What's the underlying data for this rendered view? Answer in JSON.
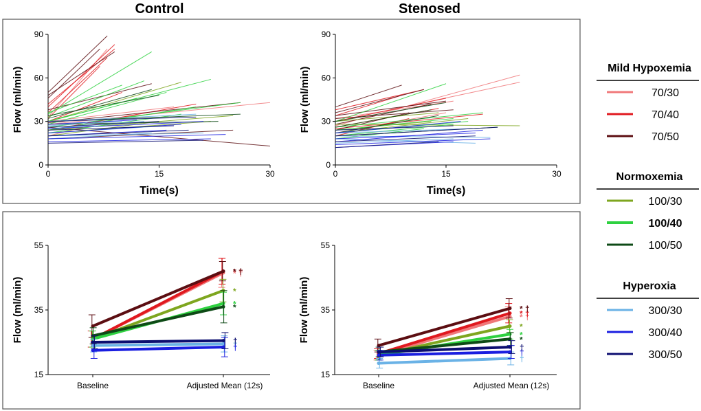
{
  "titles": {
    "left": "Control",
    "right": "Stenosed"
  },
  "legend": {
    "groups": [
      {
        "title": "Mild Hypoxemia",
        "items": [
          {
            "label": "70/30",
            "color": "#f0787a",
            "bold": false
          },
          {
            "label": "70/40",
            "color": "#e0191f",
            "bold": false
          },
          {
            "label": "70/50",
            "color": "#5c0e12",
            "bold": false
          }
        ]
      },
      {
        "title": "Normoxemia",
        "items": [
          {
            "label": "100/30",
            "color": "#7ea61f",
            "bold": false
          },
          {
            "label": "100/40",
            "color": "#2ed140",
            "bold": true
          },
          {
            "label": "100/50",
            "color": "#0e4a16",
            "bold": false
          }
        ]
      },
      {
        "title": "Hyperoxia",
        "items": [
          {
            "label": "300/30",
            "color": "#6ab2e6",
            "bold": false
          },
          {
            "label": "300/40",
            "color": "#1a1ee0",
            "bold": false
          },
          {
            "label": "300/50",
            "color": "#0c0e70",
            "bold": false
          }
        ]
      }
    ]
  },
  "chart_data": [
    {
      "id": "control-time",
      "type": "line",
      "title": "Control",
      "xlabel": "Time(s)",
      "ylabel": "Flow (ml/min)",
      "xlim": [
        0,
        30
      ],
      "ylim": [
        0,
        90
      ],
      "xticks": [
        0,
        15,
        30
      ],
      "yticks": [
        0,
        30,
        60,
        90
      ],
      "series": [
        {
          "name": "70/30",
          "color": "#f0787a",
          "segments": [
            [
              0,
              33,
              8,
              80
            ],
            [
              0,
              28,
              30,
              43
            ],
            [
              0,
              30,
              17,
              40
            ],
            [
              0,
              20,
              12,
              35
            ]
          ]
        },
        {
          "name": "70/40",
          "color": "#e0191f",
          "segments": [
            [
              0,
              40,
              9,
              83
            ],
            [
              0,
              36,
              8,
              74
            ],
            [
              0,
              42,
              9,
              80
            ],
            [
              0,
              32,
              7,
              68
            ],
            [
              0,
              30,
              10,
              50
            ],
            [
              0,
              24,
              20,
              42
            ]
          ]
        },
        {
          "name": "70/50",
          "color": "#5c0e12",
          "segments": [
            [
              0,
              50,
              8,
              89
            ],
            [
              0,
              46,
              7,
              80
            ],
            [
              0,
              48,
              9,
              78
            ],
            [
              0,
              38,
              14,
              56
            ],
            [
              0,
              26,
              30,
              13
            ],
            [
              0,
              18,
              25,
              24
            ],
            [
              0,
              29,
              26,
              43
            ]
          ]
        },
        {
          "name": "100/30",
          "color": "#7ea61f",
          "segments": [
            [
              0,
              30,
              18,
              57
            ],
            [
              0,
              24,
              25,
              34
            ],
            [
              0,
              22,
              22,
              30
            ],
            [
              0,
              20,
              15,
              30
            ]
          ]
        },
        {
          "name": "100/40",
          "color": "#2ed140",
          "segments": [
            [
              0,
              35,
              14,
              78
            ],
            [
              0,
              30,
              22,
              59
            ],
            [
              0,
              28,
              16,
              50
            ],
            [
              0,
              33,
              13,
              58
            ],
            [
              0,
              26,
              26,
              43
            ],
            [
              0,
              24,
              20,
              40
            ],
            [
              0,
              22,
              18,
              35
            ],
            [
              0,
              36,
              10,
              55
            ],
            [
              0,
              30,
              12,
              46
            ]
          ]
        },
        {
          "name": "100/50",
          "color": "#0e4a16",
          "segments": [
            [
              0,
              32,
              14,
              52
            ],
            [
              0,
              28,
              23,
              30
            ],
            [
              0,
              30,
              26,
              35
            ],
            [
              0,
              34,
              15,
              48
            ]
          ]
        },
        {
          "name": "300/30",
          "color": "#6ab2e6",
          "segments": [
            [
              0,
              25,
              13,
              30
            ],
            [
              0,
              20,
              21,
              22
            ],
            [
              0,
              27,
              10,
              30
            ],
            [
              0,
              18,
              14,
              22
            ],
            [
              0,
              30,
              20,
              35
            ],
            [
              0,
              22,
              16,
              27
            ]
          ]
        },
        {
          "name": "300/40",
          "color": "#1a1ee0",
          "segments": [
            [
              0,
              18,
              24,
              21
            ],
            [
              0,
              22,
              18,
              28
            ],
            [
              0,
              25,
              21,
              30
            ],
            [
              0,
              28,
              12,
              31
            ],
            [
              0,
              20,
              16,
              24
            ],
            [
              0,
              16,
              22,
              18
            ]
          ]
        },
        {
          "name": "300/50",
          "color": "#0c0e70",
          "segments": [
            [
              0,
              20,
              19,
              24
            ],
            [
              0,
              26,
              15,
              30
            ],
            [
              0,
              30,
              20,
              33
            ],
            [
              0,
              15,
              21,
              17
            ],
            [
              0,
              24,
              17,
              27
            ]
          ]
        }
      ]
    },
    {
      "id": "stenosed-time",
      "type": "line",
      "title": "Stenosed",
      "xlabel": "Time(s)",
      "ylabel": "Flow (ml/min)",
      "xlim": [
        0,
        30
      ],
      "ylim": [
        0,
        90
      ],
      "xticks": [
        0,
        15,
        30
      ],
      "yticks": [
        0,
        30,
        60,
        90
      ],
      "series": [
        {
          "name": "70/30",
          "color": "#f0787a",
          "segments": [
            [
              0,
              27,
              25,
              62
            ],
            [
              0,
              30,
              25,
              57
            ],
            [
              0,
              32,
              16,
              44
            ],
            [
              0,
              22,
              15,
              36
            ]
          ]
        },
        {
          "name": "70/40",
          "color": "#e0191f",
          "segments": [
            [
              0,
              38,
              12,
              52
            ],
            [
              0,
              30,
              15,
              46
            ],
            [
              0,
              34,
              9,
              48
            ],
            [
              0,
              26,
              14,
              39
            ],
            [
              0,
              25,
              20,
              35
            ],
            [
              0,
              20,
              10,
              32
            ]
          ]
        },
        {
          "name": "70/50",
          "color": "#5c0e12",
          "segments": [
            [
              0,
              40,
              9,
              55
            ],
            [
              0,
              36,
              12,
              52
            ],
            [
              0,
              34,
              15,
              44
            ],
            [
              0,
              28,
              13,
              42
            ],
            [
              0,
              24,
              10,
              36
            ],
            [
              0,
              32,
              16,
              38
            ]
          ]
        },
        {
          "name": "100/30",
          "color": "#7ea61f",
          "segments": [
            [
              0,
              28,
              25,
              27
            ],
            [
              0,
              22,
              18,
              32
            ],
            [
              0,
              30,
              14,
              36
            ],
            [
              0,
              24,
              13,
              30
            ]
          ]
        },
        {
          "name": "100/40",
          "color": "#2ed140",
          "segments": [
            [
              0,
              30,
              15,
              56
            ],
            [
              0,
              26,
              20,
              36
            ],
            [
              0,
              24,
              16,
              32
            ],
            [
              0,
              20,
              16,
              28
            ],
            [
              0,
              22,
              18,
              30
            ],
            [
              0,
              18,
              12,
              25
            ]
          ]
        },
        {
          "name": "100/50",
          "color": "#0e4a16",
          "segments": [
            [
              0,
              30,
              15,
              43
            ],
            [
              0,
              26,
              13,
              38
            ],
            [
              0,
              22,
              14,
              34
            ],
            [
              0,
              20,
              22,
              26
            ]
          ]
        },
        {
          "name": "300/30",
          "color": "#6ab2e6",
          "segments": [
            [
              0,
              18,
              19,
              15
            ],
            [
              0,
              20,
              21,
              19
            ],
            [
              0,
              15,
              16,
              18
            ],
            [
              0,
              22,
              18,
              25
            ]
          ]
        },
        {
          "name": "300/40",
          "color": "#1a1ee0",
          "segments": [
            [
              0,
              14,
              21,
              18
            ],
            [
              0,
              18,
              19,
              22
            ],
            [
              0,
              22,
              17,
              30
            ],
            [
              0,
              16,
              20,
              24
            ],
            [
              0,
              12,
              16,
              16
            ]
          ]
        },
        {
          "name": "300/50",
          "color": "#0c0e70",
          "segments": [
            [
              0,
              16,
              19,
              20
            ],
            [
              0,
              20,
              22,
              26
            ],
            [
              0,
              24,
              16,
              27
            ],
            [
              0,
              12,
              14,
              16
            ]
          ]
        }
      ]
    },
    {
      "id": "control-mean",
      "type": "line",
      "xlabel": "",
      "ylabel": "Flow (ml/min)",
      "categories": [
        "Baseline",
        "Adjusted Mean (12s)"
      ],
      "ylim": [
        15,
        55
      ],
      "yticks": [
        15,
        35,
        55
      ],
      "series": [
        {
          "name": "70/30",
          "color": "#f0787a",
          "values": [
            26,
            46.5
          ],
          "errors": [
            2.5,
            4.5
          ],
          "marks": "* †"
        },
        {
          "name": "70/40",
          "color": "#e0191f",
          "values": [
            26,
            47
          ],
          "errors": [
            2.5,
            4
          ],
          "marks": "* †"
        },
        {
          "name": "70/50",
          "color": "#5c0e12",
          "values": [
            30,
            47
          ],
          "errors": [
            3.5,
            3
          ],
          "marks": "* †"
        },
        {
          "name": "100/30",
          "color": "#7ea61f",
          "values": [
            26,
            41
          ],
          "errors": [
            2.5,
            3.5
          ],
          "marks": "*"
        },
        {
          "name": "100/40",
          "color": "#2ed140",
          "values": [
            26,
            37
          ],
          "errors": [
            2.5,
            3.5
          ],
          "marks": "*"
        },
        {
          "name": "100/50",
          "color": "#0e4a16",
          "values": [
            27,
            36
          ],
          "errors": [
            2.5,
            5
          ],
          "marks": "*"
        },
        {
          "name": "300/30",
          "color": "#6ab2e6",
          "values": [
            24,
            24.5
          ],
          "errors": [
            2,
            2.5
          ],
          "marks": "†"
        },
        {
          "name": "300/40",
          "color": "#1a1ee0",
          "values": [
            22.5,
            23.5
          ],
          "errors": [
            2.5,
            3
          ],
          "marks": "†"
        },
        {
          "name": "300/50",
          "color": "#0c0e70",
          "values": [
            25,
            25.5
          ],
          "errors": [
            2,
            2.5
          ],
          "marks": "†"
        }
      ]
    },
    {
      "id": "stenosed-mean",
      "type": "line",
      "xlabel": "",
      "ylabel": "Flow (ml/min)",
      "categories": [
        "Baseline",
        "Adjusted Mean (12s)"
      ],
      "ylim": [
        15,
        55
      ],
      "yticks": [
        15,
        35,
        55
      ],
      "series": [
        {
          "name": "70/30",
          "color": "#f0787a",
          "values": [
            21,
            33
          ],
          "errors": [
            1.5,
            3
          ],
          "marks": "* †"
        },
        {
          "name": "70/40",
          "color": "#e0191f",
          "values": [
            21.5,
            34
          ],
          "errors": [
            1.5,
            3
          ],
          "marks": "* †"
        },
        {
          "name": "70/50",
          "color": "#5c0e12",
          "values": [
            24,
            35.5
          ],
          "errors": [
            2,
            3
          ],
          "marks": "* †"
        },
        {
          "name": "100/30",
          "color": "#7ea61f",
          "values": [
            21,
            30
          ],
          "errors": [
            1.5,
            2
          ],
          "marks": "*"
        },
        {
          "name": "100/40",
          "color": "#2ed140",
          "values": [
            21,
            27.5
          ],
          "errors": [
            1.5,
            1.5
          ],
          "marks": "*"
        },
        {
          "name": "100/50",
          "color": "#0e4a16",
          "values": [
            22,
            26
          ],
          "errors": [
            1.5,
            2
          ],
          "marks": "*"
        },
        {
          "name": "300/30",
          "color": "#6ab2e6",
          "values": [
            18.5,
            20
          ],
          "errors": [
            1.5,
            2
          ],
          "marks": "†"
        },
        {
          "name": "300/40",
          "color": "#1a1ee0",
          "values": [
            21,
            22
          ],
          "errors": [
            1.5,
            2
          ],
          "marks": "†"
        },
        {
          "name": "300/50",
          "color": "#0c0e70",
          "values": [
            22,
            23.5
          ],
          "errors": [
            1.5,
            2
          ],
          "marks": "†"
        }
      ]
    }
  ]
}
